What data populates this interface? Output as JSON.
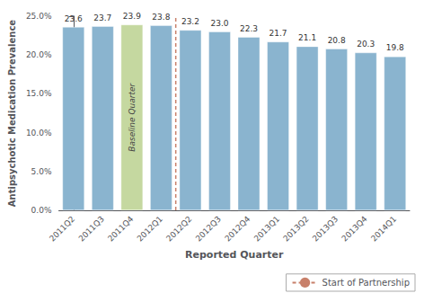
{
  "chart_data": {
    "type": "bar",
    "categories": [
      "2011Q2",
      "2011Q3",
      "2011Q4",
      "2012Q1",
      "2012Q2",
      "2012Q3",
      "2012Q4",
      "2013Q1",
      "2013Q2",
      "2013Q3",
      "2013Q4",
      "2014Q1"
    ],
    "values": [
      23.6,
      23.7,
      23.9,
      23.8,
      23.2,
      23.0,
      22.3,
      21.7,
      21.1,
      20.8,
      20.3,
      19.8
    ],
    "value_labels": [
      "23.6",
      "23.7",
      "23.9",
      "23.8",
      "23.2",
      "23.0",
      "22.3",
      "21.7",
      "21.1",
      "20.8",
      "20.3",
      "19.8"
    ],
    "colors": [
      "#8ab4cf",
      "#8ab4cf",
      "#c5d8a0",
      "#8ab4cf",
      "#8ab4cf",
      "#8ab4cf",
      "#8ab4cf",
      "#8ab4cf",
      "#8ab4cf",
      "#8ab4cf",
      "#8ab4cf",
      "#8ab4cf"
    ],
    "data_labels": true,
    "xlabel": "Reported Quarter",
    "ylabel": "Antipsychotic Medication Prevalence",
    "ylim": [
      0,
      25
    ],
    "yticks": [
      {
        "value": 0,
        "label": "0.0%"
      },
      {
        "value": 5,
        "label": "5.0%"
      },
      {
        "value": 10,
        "label": "10.0%"
      },
      {
        "value": 15,
        "label": "15.0%"
      },
      {
        "value": 20,
        "label": "20.0%"
      },
      {
        "value": 25,
        "label": "25.0%"
      }
    ],
    "grid": false,
    "legend": "lower right",
    "annotations": [
      {
        "text": "Baseline Quarter",
        "category": "2011Q4"
      }
    ],
    "reference_lines": [
      {
        "after": "2012Q1",
        "name": "Start of Partnership",
        "color": "#c8806a",
        "line_style": "dashed"
      }
    ]
  }
}
